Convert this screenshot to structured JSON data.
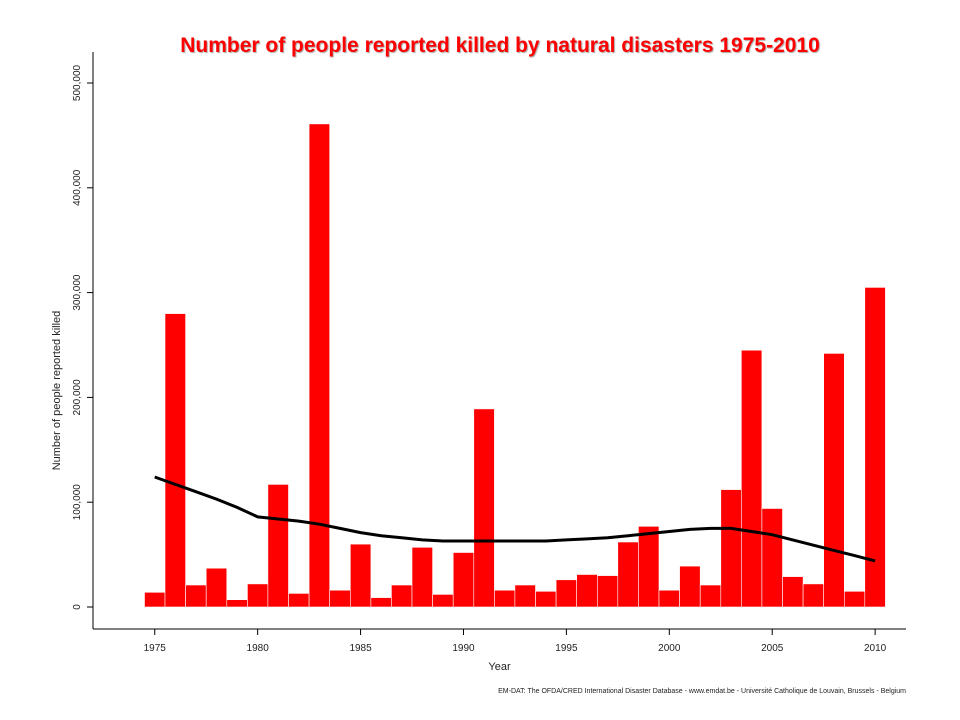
{
  "chart_data": {
    "type": "bar",
    "title": "Number of people reported killed by natural disasters 1975-2010",
    "xlabel": "Year",
    "ylabel": "Number of people reported killed",
    "xlim": [
      1972,
      2011.5
    ],
    "ylim": [
      0,
      500000
    ],
    "x_ticks": [
      1975,
      1980,
      1985,
      1990,
      1995,
      2000,
      2005,
      2010
    ],
    "y_ticks": [
      0,
      100000,
      200000,
      300000,
      400000,
      500000
    ],
    "y_tick_labels": [
      "0",
      "100,000",
      "200,000",
      "300,000",
      "400,000",
      "500,000"
    ],
    "bar_color": "#ff0000",
    "trend_color": "#000000",
    "series": [
      {
        "x": [
          1975,
          1976,
          1977,
          1978,
          1979,
          1980,
          1981,
          1982,
          1983,
          1984,
          1985,
          1986,
          1987,
          1988,
          1989,
          1990,
          1991,
          1992,
          1993,
          1994,
          1995,
          1996,
          1997,
          1998,
          1999,
          2000,
          2001,
          2002,
          2003,
          2004,
          2005,
          2006,
          2007,
          2008,
          2009,
          2010
        ],
        "values": [
          14000,
          280000,
          21000,
          37000,
          7000,
          22000,
          117000,
          13000,
          461000,
          16000,
          60000,
          9000,
          21000,
          57000,
          12000,
          52000,
          189000,
          16000,
          21000,
          15000,
          26000,
          31000,
          30000,
          62000,
          77000,
          16000,
          39000,
          21000,
          112000,
          245000,
          94000,
          29000,
          22000,
          242000,
          15000,
          305000
        ]
      },
      {
        "x": [
          1975,
          1976,
          1977,
          1978,
          1979,
          1980,
          1981,
          1982,
          1983,
          1984,
          1985,
          1986,
          1987,
          1988,
          1989,
          1990,
          1991,
          1992,
          1993,
          1994,
          1995,
          1996,
          1997,
          1998,
          1999,
          2000,
          2001,
          2002,
          2003,
          2004,
          2005,
          2006,
          2007,
          2008,
          2009,
          2010
        ],
        "values": [
          124000,
          117000,
          110000,
          103000,
          95000,
          86000,
          84000,
          82000,
          79000,
          75000,
          71000,
          68000,
          66000,
          64000,
          63000,
          63000,
          63000,
          63000,
          63000,
          63000,
          64000,
          65000,
          66000,
          68000,
          70000,
          72000,
          74000,
          75000,
          75000,
          72000,
          69000,
          64000,
          59000,
          54000,
          49000,
          44000
        ]
      }
    ],
    "source_text": "EM-DAT: The OFDA/CRED International Disaster Database - www.emdat.be - Université Catholique de Louvain, Brussels - Belgium"
  }
}
